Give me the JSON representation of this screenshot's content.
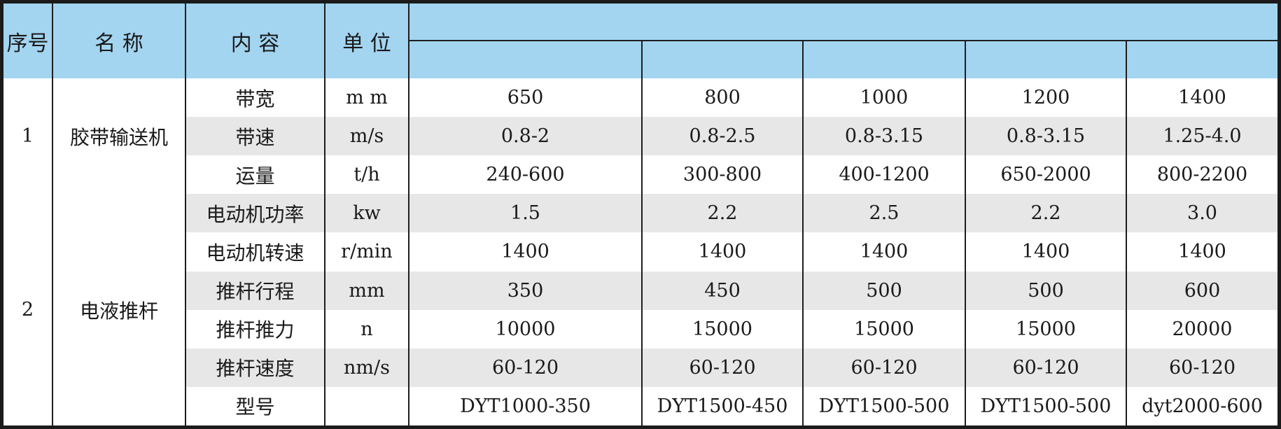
{
  "colors": {
    "header_blue": "#a3d5f1",
    "stripe_gray": "#e7e7e7",
    "grid_line": "#1e1e1e",
    "text": "#1a1a1a"
  },
  "chart_data": {
    "type": "table",
    "title": "",
    "header_columns": [
      "序号",
      "名 称",
      "内 容",
      "单 位"
    ],
    "model_column_count": 5,
    "model_column_headers": [
      "",
      "",
      "",
      "",
      ""
    ],
    "groups": [
      {
        "serial": "1",
        "name": "胶带输送机",
        "row_count": 3
      },
      {
        "serial": "2",
        "name": "电液推杆",
        "row_count": 6
      }
    ],
    "rows": [
      {
        "content": "带宽",
        "unit": "m m",
        "values": [
          "650",
          "800",
          "1000",
          "1200",
          "1400"
        ]
      },
      {
        "content": "带速",
        "unit": "m/s",
        "values": [
          "0.8-2",
          "0.8-2.5",
          "0.8-3.15",
          "0.8-3.15",
          "1.25-4.0"
        ]
      },
      {
        "content": "运量",
        "unit": "t/h",
        "values": [
          "240-600",
          "300-800",
          "400-1200",
          "650-2000",
          "800-2200"
        ]
      },
      {
        "content": "电动机功率",
        "unit": "kw",
        "values": [
          "1.5",
          "2.2",
          "2.5",
          "2.2",
          "3.0"
        ]
      },
      {
        "content": "电动机转速",
        "unit": "r/min",
        "values": [
          "1400",
          "1400",
          "1400",
          "1400",
          "1400"
        ]
      },
      {
        "content": "推杆行程",
        "unit": "mm",
        "values": [
          "350",
          "450",
          "500",
          "500",
          "600"
        ]
      },
      {
        "content": "推杆推力",
        "unit": "n",
        "values": [
          "10000",
          "15000",
          "15000",
          "15000",
          "20000"
        ]
      },
      {
        "content": "推杆速度",
        "unit": "nm/s",
        "values": [
          "60-120",
          "60-120",
          "60-120",
          "60-120",
          "60-120"
        ]
      },
      {
        "content": "型号",
        "unit": "",
        "values": [
          "DYT1000-350",
          "DYT1500-450",
          "DYT1500-500",
          "DYT1500-500",
          "dyt2000-600"
        ]
      }
    ]
  }
}
